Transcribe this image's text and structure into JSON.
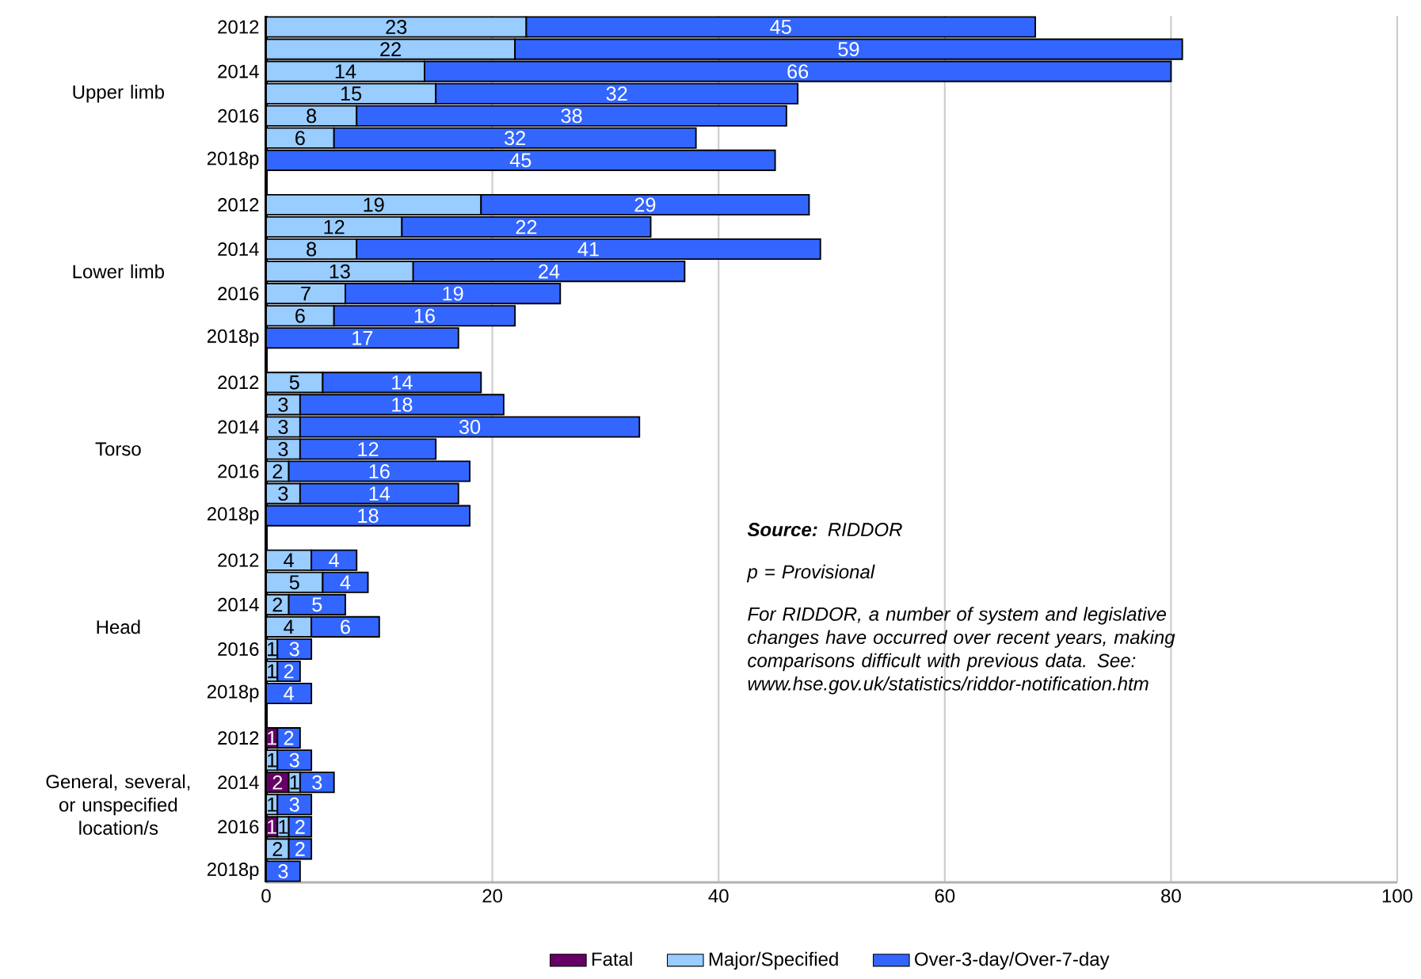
{
  "chart_data": {
    "type": "bar",
    "orientation": "horizontal",
    "stacked": true,
    "categories": [
      "2012",
      null,
      "2014",
      null,
      "2016",
      null,
      "2018p",
      null,
      "2012",
      null,
      "2014",
      null,
      "2016",
      null,
      "2018p",
      null,
      "2012",
      null,
      "2014",
      null,
      "2016",
      null,
      "2018p",
      null,
      "2012",
      null,
      "2014",
      null,
      "2016",
      null,
      "2018p",
      null,
      "2012",
      null,
      "2014",
      null,
      "2016",
      null,
      "2018p"
    ],
    "series": [
      {
        "name": "Fatal",
        "color": "#660066",
        "values": [
          null,
          null,
          null,
          null,
          null,
          null,
          null,
          null,
          null,
          null,
          null,
          null,
          null,
          null,
          null,
          null,
          null,
          null,
          null,
          null,
          null,
          null,
          null,
          null,
          null,
          null,
          null,
          null,
          null,
          null,
          null,
          null,
          1,
          null,
          2,
          null,
          1,
          null,
          null
        ]
      },
      {
        "name": "Major/Specified",
        "color": "#99ccff",
        "values": [
          23,
          22,
          14,
          15,
          8,
          6,
          null,
          null,
          19,
          12,
          8,
          13,
          7,
          6,
          null,
          null,
          5,
          3,
          3,
          3,
          2,
          3,
          null,
          null,
          4,
          5,
          2,
          4,
          1,
          1,
          null,
          null,
          null,
          1,
          1,
          1,
          1,
          2,
          null
        ]
      },
      {
        "name": "Over-3-day/Over-7-day",
        "color": "#3366ff",
        "values": [
          45,
          59,
          66,
          32,
          38,
          32,
          45,
          null,
          29,
          22,
          41,
          24,
          19,
          16,
          17,
          null,
          14,
          18,
          30,
          12,
          16,
          14,
          18,
          null,
          4,
          4,
          5,
          6,
          3,
          2,
          4,
          null,
          2,
          3,
          3,
          3,
          2,
          2,
          3
        ]
      }
    ],
    "xlim": [
      0,
      100
    ],
    "xticks": [
      0,
      20,
      40,
      60,
      80,
      100
    ],
    "grid": "x",
    "legend": "bottom",
    "data_labels": true,
    "annotations": [
      "Upper limb",
      "Lower limb",
      "Torso",
      "Head",
      "General, several, or unspecified location/s",
      "**Source:** RIDDOR",
      "p = Provisional",
      "For RIDDOR, a number of system and legislative changes have occurred over recent years, making comparisons difficult with  previous data. See: www.hse.gov.uk/statistics/riddor-notification.htm"
    ]
  }
}
